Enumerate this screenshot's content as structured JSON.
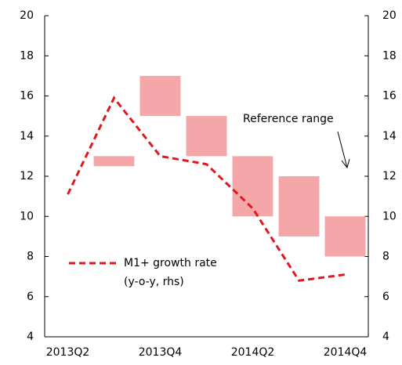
{
  "chart_data": {
    "type": "range-line",
    "categories": [
      "2013Q2",
      null,
      "2013Q4",
      null,
      "2014Q2",
      null,
      "2014Q4"
    ],
    "series": [
      {
        "name": "M1+ growth rate",
        "note": "(y-o-y, rhs)",
        "color": "#e3161c",
        "axis": "y2",
        "style": "dashed",
        "values": [
          11.1,
          15.9,
          13.0,
          12.6,
          10.4,
          6.8,
          7.1
        ]
      },
      {
        "name": "Reference range",
        "color": "#f4a6a8",
        "low": [
          null,
          12.5,
          15,
          13,
          10,
          9,
          8
        ],
        "high": [
          null,
          13,
          17,
          15,
          13,
          12,
          10
        ]
      }
    ],
    "ylim": [
      4,
      20
    ],
    "yticks": [
      4,
      6,
      8,
      10,
      12,
      14,
      16,
      18,
      20
    ],
    "y2lim": [
      4,
      20
    ],
    "y2ticks": [
      4,
      6,
      8,
      10,
      12,
      14,
      16,
      18,
      20
    ]
  }
}
